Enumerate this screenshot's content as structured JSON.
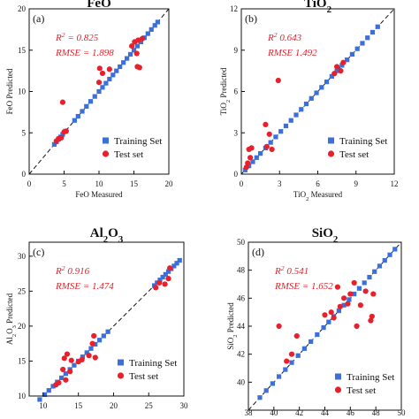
{
  "chart_data": [
    {
      "type": "scatter",
      "panel_label": "(a)",
      "title": "FeO",
      "xlabel": "FeO Measured",
      "ylabel": "FeO Predicted",
      "xlim": [
        0,
        20
      ],
      "ylim": [
        0,
        20
      ],
      "xticks": [
        "0",
        "5",
        "10",
        "15",
        "20"
      ],
      "yticks": [
        "0",
        "5",
        "10",
        "15",
        "20"
      ],
      "stats": {
        "r2_label": "R",
        "r2_sup": "2",
        "r2_text": " = 0.825",
        "rmse_text": "RMSE = 1.898"
      },
      "legend": {
        "position": "bottom-right",
        "entries": [
          "Training Set",
          "Test set"
        ]
      },
      "identity_line": true,
      "series": [
        {
          "name": "Training Set",
          "color": "#3b6fd9",
          "marker": "square",
          "points": [
            [
              3.6,
              3.6
            ],
            [
              3.9,
              3.9
            ],
            [
              4.2,
              4.2
            ],
            [
              4.5,
              4.5
            ],
            [
              4.8,
              4.8
            ],
            [
              5.2,
              5.2
            ],
            [
              6.5,
              6.5
            ],
            [
              7.0,
              7.0
            ],
            [
              7.6,
              7.6
            ],
            [
              8.2,
              8.2
            ],
            [
              8.8,
              8.8
            ],
            [
              9.4,
              9.4
            ],
            [
              10.0,
              10.0
            ],
            [
              10.5,
              10.5
            ],
            [
              11.0,
              11.0
            ],
            [
              11.5,
              11.5
            ],
            [
              12.0,
              12.0
            ],
            [
              12.5,
              12.5
            ],
            [
              13.0,
              13.0
            ],
            [
              13.5,
              13.5
            ],
            [
              14.0,
              14.0
            ],
            [
              14.5,
              14.5
            ],
            [
              15.0,
              15.0
            ],
            [
              15.5,
              15.5
            ],
            [
              16.0,
              16.0
            ],
            [
              16.5,
              16.5
            ],
            [
              17.0,
              17.0
            ],
            [
              17.5,
              17.5
            ],
            [
              18.0,
              18.0
            ],
            [
              18.4,
              18.4
            ]
          ]
        },
        {
          "name": "Test set",
          "color": "#e8202b",
          "marker": "circle",
          "points": [
            [
              3.9,
              4.0
            ],
            [
              4.2,
              4.3
            ],
            [
              4.6,
              4.4
            ],
            [
              4.8,
              8.7
            ],
            [
              5.0,
              5.1
            ],
            [
              5.3,
              5.2
            ],
            [
              10.0,
              11.1
            ],
            [
              10.1,
              12.8
            ],
            [
              10.5,
              12.2
            ],
            [
              11.5,
              12.7
            ],
            [
              14.7,
              15.5
            ],
            [
              15.1,
              16.0
            ],
            [
              15.4,
              14.6
            ],
            [
              15.5,
              13.0
            ],
            [
              15.6,
              16.2
            ],
            [
              15.8,
              12.9
            ],
            [
              16.2,
              16.4
            ]
          ]
        }
      ]
    },
    {
      "type": "scatter",
      "panel_label": "(b)",
      "title": "TiO2",
      "xlabel": "TiO2 Measured",
      "ylabel": "TiO2 Predicted",
      "xlim": [
        0,
        12
      ],
      "ylim": [
        0,
        12
      ],
      "xticks": [
        "0",
        "3",
        "6",
        "9",
        "12"
      ],
      "yticks": [
        "0",
        "3",
        "6",
        "9",
        "12"
      ],
      "stats": {
        "r2_label": "R",
        "r2_sup": "2",
        "r2_text": "   0.643",
        "rmse_text": "RMSE   1.492"
      },
      "legend": {
        "position": "bottom-right",
        "entries": [
          "Training Set",
          "Test set"
        ]
      },
      "identity_line": true,
      "series": [
        {
          "name": "Training Set",
          "color": "#3b6fd9",
          "marker": "square",
          "points": [
            [
              0.3,
              0.3
            ],
            [
              0.6,
              0.6
            ],
            [
              0.9,
              0.9
            ],
            [
              1.2,
              1.2
            ],
            [
              1.5,
              1.5
            ],
            [
              1.9,
              1.9
            ],
            [
              2.3,
              2.3
            ],
            [
              2.7,
              2.7
            ],
            [
              3.1,
              3.1
            ],
            [
              3.5,
              3.5
            ],
            [
              3.9,
              3.9
            ],
            [
              4.3,
              4.3
            ],
            [
              4.7,
              4.7
            ],
            [
              5.1,
              5.1
            ],
            [
              5.5,
              5.5
            ],
            [
              5.9,
              5.9
            ],
            [
              6.3,
              6.3
            ],
            [
              6.7,
              6.7
            ],
            [
              7.1,
              7.1
            ],
            [
              7.5,
              7.5
            ],
            [
              7.9,
              7.9
            ],
            [
              8.3,
              8.3
            ],
            [
              8.7,
              8.7
            ],
            [
              9.1,
              9.1
            ],
            [
              9.5,
              9.5
            ],
            [
              9.9,
              9.9
            ],
            [
              10.3,
              10.3
            ],
            [
              10.7,
              10.7
            ]
          ]
        },
        {
          "name": "Test set",
          "color": "#e8202b",
          "marker": "circle",
          "points": [
            [
              0.4,
              0.5
            ],
            [
              0.5,
              0.8
            ],
            [
              0.6,
              1.8
            ],
            [
              0.7,
              1.2
            ],
            [
              0.8,
              1.9
            ],
            [
              1.9,
              3.6
            ],
            [
              2.0,
              2.0
            ],
            [
              2.2,
              2.9
            ],
            [
              2.4,
              1.8
            ],
            [
              2.9,
              6.8
            ],
            [
              7.3,
              7.3
            ],
            [
              7.5,
              7.8
            ],
            [
              7.8,
              7.5
            ],
            [
              8.0,
              8.1
            ]
          ]
        }
      ]
    },
    {
      "type": "scatter",
      "panel_label": "(c)",
      "title": "Al2O3",
      "xlabel": "",
      "ylabel": "Al2O3 Predicted",
      "xlim": [
        8,
        30
      ],
      "ylim": [
        10,
        32
      ],
      "xticks": [
        "10",
        "15",
        "20",
        "25",
        "30"
      ],
      "yticks": [
        "10",
        "15",
        "20",
        "25",
        "30"
      ],
      "stats": {
        "r2_label": "R",
        "r2_sup": "2",
        "r2_text": "   0.916",
        "rmse_text": "RMSE = 1.474"
      },
      "legend": {
        "position": "bottom-right",
        "entries": [
          "Training Set",
          "Test set"
        ]
      },
      "identity_line": true,
      "series": [
        {
          "name": "Training Set",
          "color": "#3b6fd9",
          "marker": "square",
          "points": [
            [
              9.5,
              9.5
            ],
            [
              10.2,
              10.2
            ],
            [
              10.8,
              10.8
            ],
            [
              11.4,
              11.4
            ],
            [
              12.0,
              12.0
            ],
            [
              12.6,
              12.6
            ],
            [
              13.2,
              13.2
            ],
            [
              13.8,
              13.8
            ],
            [
              14.4,
              14.4
            ],
            [
              15.0,
              15.0
            ],
            [
              15.6,
              15.6
            ],
            [
              16.2,
              16.2
            ],
            [
              16.8,
              16.8
            ],
            [
              17.4,
              17.4
            ],
            [
              18.0,
              18.0
            ],
            [
              18.6,
              18.6
            ],
            [
              19.2,
              19.2
            ],
            [
              25.8,
              25.8
            ],
            [
              26.2,
              26.2
            ],
            [
              26.6,
              26.6
            ],
            [
              27.0,
              27.0
            ],
            [
              27.4,
              27.4
            ],
            [
              27.8,
              27.8
            ],
            [
              28.2,
              28.2
            ],
            [
              28.6,
              28.6
            ],
            [
              29.0,
              29.0
            ],
            [
              29.4,
              29.4
            ]
          ]
        },
        {
          "name": "Test set",
          "color": "#e8202b",
          "marker": "circle",
          "points": [
            [
              11.8,
              11.6
            ],
            [
              12.2,
              11.9
            ],
            [
              12.8,
              13.8
            ],
            [
              13.0,
              15.4
            ],
            [
              13.2,
              12.3
            ],
            [
              13.4,
              16.0
            ],
            [
              13.8,
              13.5
            ],
            [
              14.0,
              15.1
            ],
            [
              15.0,
              14.9
            ],
            [
              15.5,
              15.2
            ],
            [
              16.5,
              15.8
            ],
            [
              17.0,
              17.5
            ],
            [
              17.2,
              18.6
            ],
            [
              17.4,
              15.5
            ],
            [
              26.0,
              25.5
            ],
            [
              26.5,
              26.2
            ],
            [
              27.3,
              26.0
            ],
            [
              27.8,
              26.8
            ],
            [
              28.0,
              28.3
            ]
          ]
        }
      ]
    },
    {
      "type": "scatter",
      "panel_label": "(d)",
      "title": "SiO2",
      "xlabel": "",
      "ylabel": "SiO2 Predicted",
      "xlim": [
        38,
        50
      ],
      "ylim": [
        38,
        50
      ],
      "xticks": [
        "38",
        "40",
        "42",
        "44",
        "46",
        "48",
        "50"
      ],
      "yticks": [
        "40",
        "42",
        "44",
        "46",
        "48",
        "50"
      ],
      "stats": {
        "r2_label": "R",
        "r2_sup": "2",
        "r2_text": "   0.541",
        "rmse_text": "RMSE = 1.652"
      },
      "legend": {
        "position": "bottom-right",
        "entries": [
          "Training Set",
          "Test set"
        ]
      },
      "identity_line": true,
      "series": [
        {
          "name": "Training Set",
          "color": "#3b6fd9",
          "marker": "square",
          "points": [
            [
              38.9,
              38.9
            ],
            [
              39.4,
              39.4
            ],
            [
              39.9,
              39.9
            ],
            [
              40.4,
              40.4
            ],
            [
              40.9,
              40.9
            ],
            [
              41.4,
              41.4
            ],
            [
              41.9,
              41.9
            ],
            [
              42.4,
              42.4
            ],
            [
              42.9,
              42.9
            ],
            [
              43.4,
              43.4
            ],
            [
              43.9,
              43.9
            ],
            [
              44.3,
              44.3
            ],
            [
              44.7,
              44.7
            ],
            [
              45.1,
              45.1
            ],
            [
              45.5,
              45.5
            ],
            [
              45.9,
              45.9
            ],
            [
              46.3,
              46.3
            ],
            [
              46.7,
              46.7
            ],
            [
              47.1,
              47.1
            ],
            [
              47.5,
              47.5
            ],
            [
              47.9,
              47.9
            ],
            [
              48.3,
              48.3
            ],
            [
              48.7,
              48.7
            ],
            [
              49.1,
              49.1
            ],
            [
              49.5,
              49.5
            ]
          ]
        },
        {
          "name": "Test set",
          "color": "#e8202b",
          "marker": "circle",
          "points": [
            [
              40.4,
              44.0
            ],
            [
              41.0,
              41.5
            ],
            [
              41.4,
              42.0
            ],
            [
              41.8,
              43.3
            ],
            [
              44.0,
              44.8
            ],
            [
              44.5,
              45.0
            ],
            [
              44.7,
              44.6
            ],
            [
              45.0,
              46.8
            ],
            [
              45.2,
              45.4
            ],
            [
              45.5,
              46.0
            ],
            [
              45.8,
              45.6
            ],
            [
              46.0,
              46.3
            ],
            [
              46.3,
              47.1
            ],
            [
              46.5,
              44.0
            ],
            [
              46.8,
              45.5
            ],
            [
              47.2,
              46.5
            ],
            [
              47.6,
              44.4
            ],
            [
              47.7,
              44.7
            ],
            [
              47.8,
              46.3
            ]
          ]
        }
      ]
    }
  ]
}
